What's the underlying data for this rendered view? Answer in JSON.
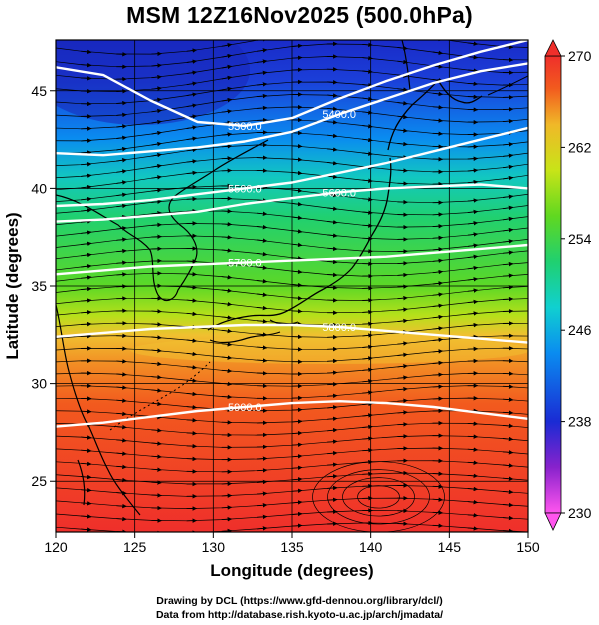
{
  "title": "MSM 12Z16Nov2025 (500.0hPa)",
  "credits": {
    "line1": "Drawing by DCL (https://www.gfd-dennou.org/library/dcl/)",
    "line2": "Data from http://database.rish.kyoto-u.ac.jp/arch/jmadata/"
  },
  "chart_data": {
    "type": "heatmap",
    "xlabel": "Longitude (degrees)",
    "ylabel": "Latitude  (degrees)",
    "xlim": [
      120,
      150
    ],
    "ylim": [
      22.4,
      47.6
    ],
    "x_ticks": [
      120,
      125,
      130,
      135,
      140,
      145,
      150
    ],
    "y_ticks": [
      25,
      30,
      35,
      40,
      45
    ],
    "colorbar": {
      "min": 230,
      "max": 270,
      "tick_values": [
        230,
        238,
        246,
        254,
        262,
        270
      ],
      "tick_labels": [
        "230",
        "238",
        "246",
        "254",
        "262",
        "270"
      ],
      "colors": [
        "#ff55ee",
        "#8822cc",
        "#1a2bd4",
        "#0a8cf0",
        "#10d0d0",
        "#20d070",
        "#60d820",
        "#c8e418",
        "#f0b828",
        "#f25a1e",
        "#ef2f2b"
      ]
    },
    "contours": [
      {
        "label": "5300.0",
        "lat": [
          46.2,
          45.8,
          44.5,
          43.4,
          43.2,
          43.6,
          44.6,
          45.5,
          46.3,
          47.0,
          47.6
        ]
      },
      {
        "label": "5400.0",
        "lat": [
          41.8,
          41.7,
          41.9,
          42.1,
          42.4,
          42.9,
          43.8,
          44.6,
          45.4,
          46.0,
          46.4
        ]
      },
      {
        "label": "5500.0",
        "lat": [
          39.1,
          39.2,
          39.4,
          39.7,
          40.0,
          40.3,
          40.8,
          41.3,
          41.9,
          42.5,
          43.1
        ]
      },
      {
        "label": "5600.0",
        "lat": [
          38.3,
          38.4,
          38.6,
          38.8,
          39.2,
          39.5,
          39.8,
          40.0,
          40.1,
          40.2,
          40.0
        ]
      },
      {
        "label": "5700.0",
        "lat": [
          35.6,
          35.8,
          36.0,
          36.1,
          36.2,
          36.3,
          36.4,
          36.5,
          36.7,
          36.9,
          37.1
        ]
      },
      {
        "label": "5800.0",
        "lat": [
          32.4,
          32.6,
          32.8,
          32.9,
          33.0,
          33.0,
          32.9,
          32.7,
          32.5,
          32.3,
          32.1
        ]
      },
      {
        "label": "5900.0",
        "lat": [
          27.8,
          28.0,
          28.3,
          28.6,
          28.8,
          29.0,
          29.1,
          29.0,
          28.8,
          28.5,
          28.2
        ]
      }
    ]
  }
}
